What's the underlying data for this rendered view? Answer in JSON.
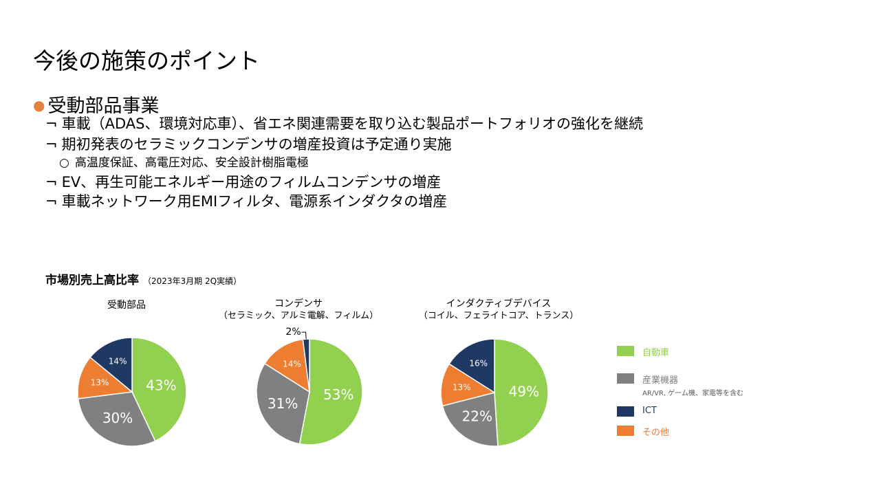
{
  "title": "今後の施策のポイント",
  "section": {
    "bullet_glyph": "●",
    "heading": "受動部品事業",
    "items": [
      {
        "marker": "¬",
        "text": "車載（ADAS、環境対応車）、省エネ関連需要を取り込む製品ポートフォリオの強化を継続"
      },
      {
        "marker": "¬",
        "text": "期初発表のセラミックコンデンサの増産投資は予定通り実施"
      },
      {
        "marker": "○",
        "text": "高温度保証、高電圧対応、安全設計樹脂電極"
      },
      {
        "marker": "¬",
        "text": "EV、再生可能エネルギー用途のフィルムコンデンサの増産"
      },
      {
        "marker": "¬",
        "text": "車載ネットワーク用EMIフィルタ、電源系インダクタの増産"
      }
    ]
  },
  "chart_heading": {
    "main": "市場別売上高比率",
    "note": "（2023年3月期 2Q実績）"
  },
  "colors": {
    "automotive": "#92D050",
    "industrial": "#808080",
    "ict": "#1F3864",
    "other": "#ED7D31"
  },
  "chart_data": [
    {
      "type": "pie",
      "title": "受動部品",
      "subtitle": "",
      "slices": [
        {
          "category": "自動車",
          "value": 43,
          "label": "43%"
        },
        {
          "category": "産業機器",
          "value": 30,
          "label": "30%"
        },
        {
          "category": "その他",
          "value": 13,
          "label": "13%"
        },
        {
          "category": "ICT",
          "value": 14,
          "label": "14%"
        }
      ]
    },
    {
      "type": "pie",
      "title": "コンデンサ",
      "subtitle": "（セラミック、アルミ電解、フィルム）",
      "slices": [
        {
          "category": "自動車",
          "value": 53,
          "label": "53%"
        },
        {
          "category": "産業機器",
          "value": 31,
          "label": "31%"
        },
        {
          "category": "その他",
          "value": 14,
          "label": "14%"
        },
        {
          "category": "ICT",
          "value": 2,
          "label": "2%"
        }
      ]
    },
    {
      "type": "pie",
      "title": "インダクティブデバイス",
      "subtitle": "（コイル、フェライトコア、トランス）",
      "slices": [
        {
          "category": "自動車",
          "value": 49,
          "label": "49%"
        },
        {
          "category": "産業機器",
          "value": 22,
          "label": "22%"
        },
        {
          "category": "その他",
          "value": 13,
          "label": "13%"
        },
        {
          "category": "ICT",
          "value": 16,
          "label": "16%"
        }
      ]
    }
  ],
  "legend": [
    {
      "key": "automotive",
      "label": "自動車",
      "note": ""
    },
    {
      "key": "industrial",
      "label": "産業機器",
      "note": "AR/VR, ゲーム機、家電等を含む"
    },
    {
      "key": "ict",
      "label": "ICT",
      "note": ""
    },
    {
      "key": "other",
      "label": "その他",
      "note": ""
    }
  ]
}
